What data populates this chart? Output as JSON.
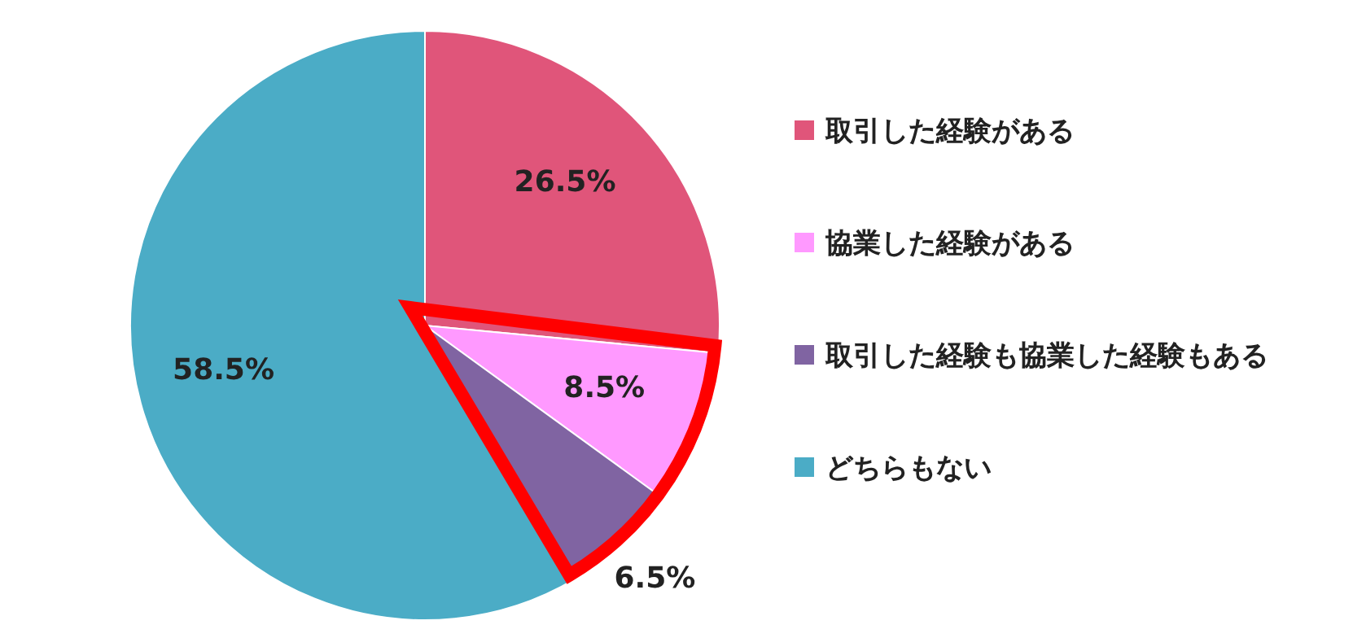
{
  "chart_data": {
    "type": "pie",
    "categories": [
      "取引した経験がある",
      "協業した経験がある",
      "取引した経験も協業した経験もある",
      "どちらもない"
    ],
    "values": [
      26.5,
      8.5,
      6.5,
      58.5
    ],
    "colors": [
      "#e0557a",
      "#ff99ff",
      "#8064a2",
      "#4bacc6"
    ],
    "value_labels": [
      "26.5%",
      "8.5%",
      "6.5%",
      "58.5%"
    ],
    "legend": "right"
  }
}
